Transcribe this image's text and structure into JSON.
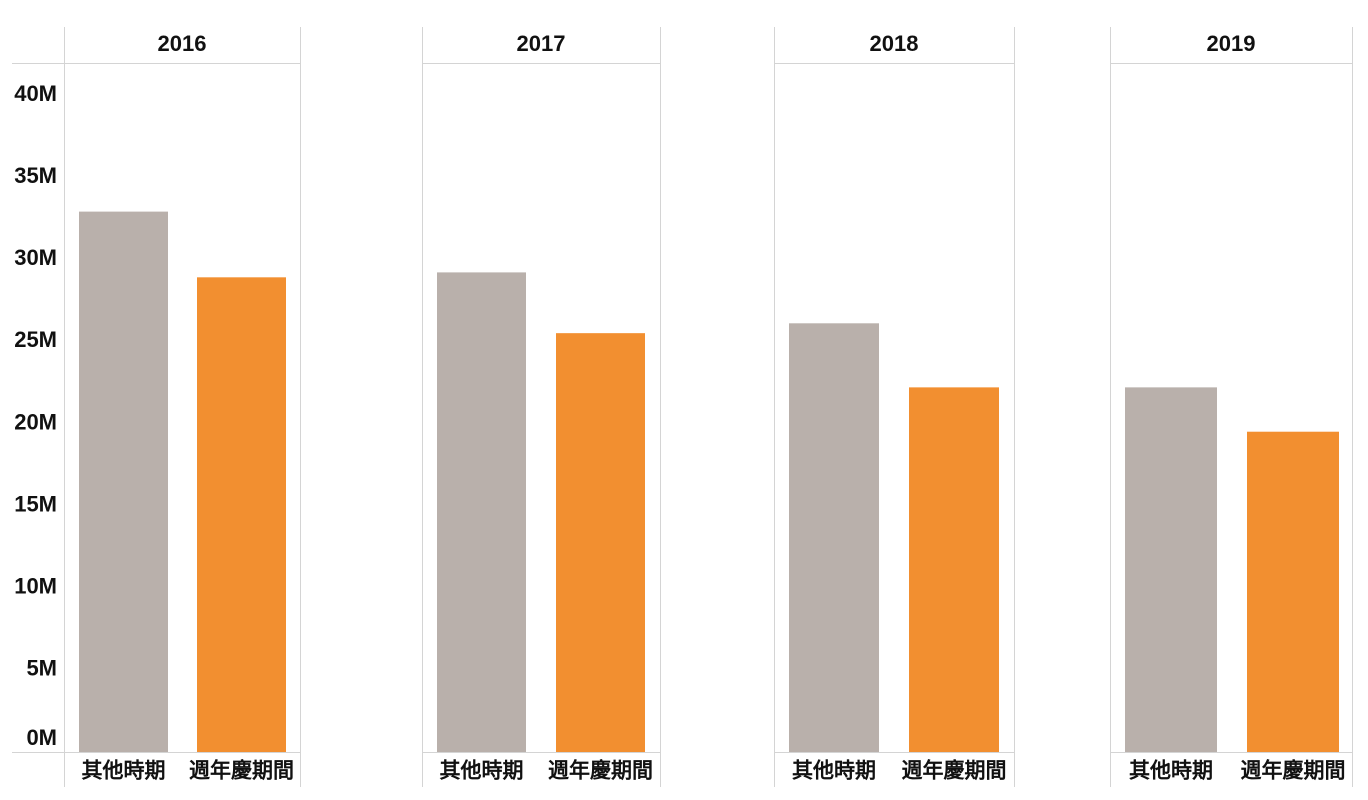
{
  "colors": {
    "other_period": "#b9b0ab",
    "anniversary_period": "#f28f30",
    "grid_line": "#d4d4d4"
  },
  "chart_data": {
    "type": "bar",
    "title": "",
    "xlabel": "",
    "ylabel": "",
    "ylim": [
      0,
      42
    ],
    "grid": false,
    "y_ticks": [
      {
        "value": 0,
        "label": "0M"
      },
      {
        "value": 5,
        "label": "5M"
      },
      {
        "value": 10,
        "label": "10M"
      },
      {
        "value": 15,
        "label": "15M"
      },
      {
        "value": 20,
        "label": "20M"
      },
      {
        "value": 25,
        "label": "25M"
      },
      {
        "value": 30,
        "label": "30M"
      },
      {
        "value": 35,
        "label": "35M"
      },
      {
        "value": 40,
        "label": "40M"
      }
    ],
    "categories": [
      "其他時期",
      "週年慶期間"
    ],
    "panels": [
      {
        "label": "2016",
        "values": [
          32.9,
          28.9
        ]
      },
      {
        "label": "2017",
        "values": [
          29.2,
          25.5
        ]
      },
      {
        "label": "2018",
        "values": [
          26.1,
          22.2
        ]
      },
      {
        "label": "2019",
        "values": [
          22.2,
          19.5
        ]
      }
    ]
  }
}
